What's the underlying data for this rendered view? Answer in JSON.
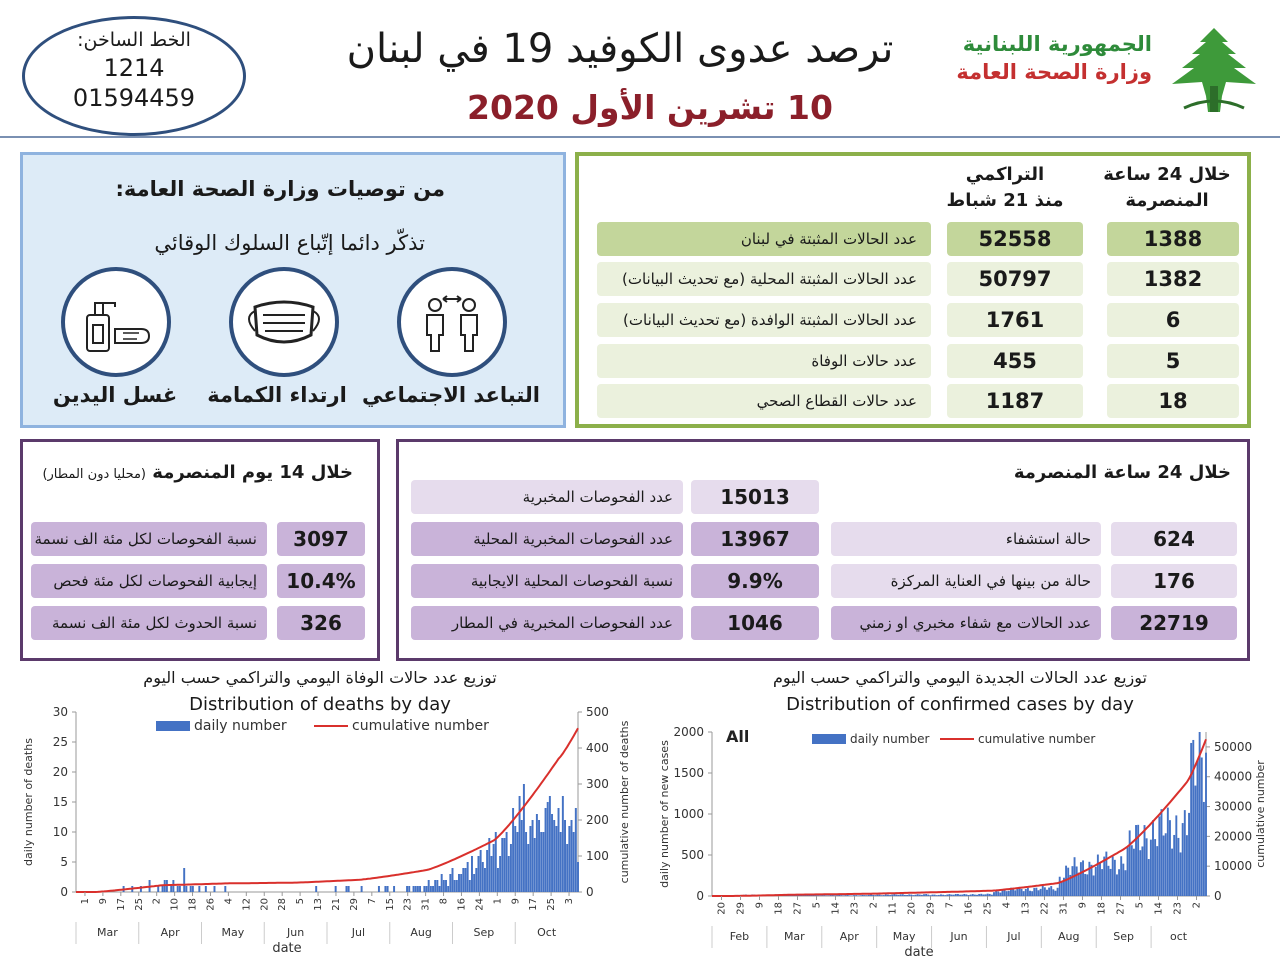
{
  "header": {
    "hotline_label": "الخط الساخن:",
    "hotline_short": "1214",
    "hotline_long": "01594459",
    "title": "ترصد عدوى الكوفيد 19 في لبنان",
    "date": "10 تشرين الأول 2020",
    "ministry_line1": "الجمهورية اللبنانية",
    "ministry_line2": "وزارة الصحة العامة"
  },
  "recommendations": {
    "title": "من توصيات وزارة الصحة العامة:",
    "subtitle": "تذكّر دائما إتّباع السلوك الوقائي",
    "items": [
      {
        "label": "التباعد الاجتماعي",
        "icon": "social-distancing-icon"
      },
      {
        "label": "ارتداء الكمامة",
        "icon": "face-mask-icon"
      },
      {
        "label": "غسل اليدين",
        "icon": "hand-washing-icon"
      }
    ]
  },
  "stats": {
    "col_24h_line1": "خلال 24 ساعة",
    "col_24h_line2": "المنصرمة",
    "col_cum_line1": "التراكمي",
    "col_cum_line2": "منذ 21 شباط",
    "rows": [
      {
        "label": "عدد الحالات المثبتة في لبنان",
        "daily": "1388",
        "cumulative": "52558"
      },
      {
        "label": "عدد الحالات المثبتة المحلية (مع تحديث البيانات)",
        "daily": "1382",
        "cumulative": "50797"
      },
      {
        "label": "عدد الحالات المثبتة الوافدة (مع تحديث البيانات)",
        "daily": "6",
        "cumulative": "1761"
      },
      {
        "label": "عدد حالات الوفاة",
        "daily": "5",
        "cumulative": "455"
      },
      {
        "label": "عدد حالات القطاع الصحي",
        "daily": "18",
        "cumulative": "1187"
      }
    ]
  },
  "days14": {
    "title": "خلال 14 يوم المنصرمة",
    "note": "(محليا دون المطار)",
    "rows": [
      {
        "label": "نسبة الفحوصات لكل مئة الف نسمة",
        "value": "3097"
      },
      {
        "label": "إيجابية الفحوصات لكل مئة فحص",
        "value": "10.4%"
      },
      {
        "label": "نسبة الحدوث لكل مئة الف نسمة",
        "value": "326"
      }
    ]
  },
  "h24": {
    "title": "خلال 24 ساعة المنصرمة",
    "tests": [
      {
        "label": "عدد الفحوصات المخبرية",
        "value": "15013"
      },
      {
        "label": "عدد الفحوصات المخبرية  المحلية",
        "value": "13967"
      },
      {
        "label": "نسبة الفحوصات المحلية الايجابية",
        "value": "9.9%"
      },
      {
        "label": "عدد الفحوصات المخبرية في المطار",
        "value": "1046"
      }
    ],
    "hospital": [
      {
        "label": "حالة استشفاء",
        "value": "624"
      },
      {
        "label": "حالة من بينها في العناية المركزة",
        "value": "176"
      },
      {
        "label": "عدد الحالات مع شفاء مخبري او زمني",
        "value": "22719"
      }
    ]
  },
  "colors": {
    "bar": "#4472c4",
    "line": "#d9302c",
    "green_dark": "#c3d69b",
    "green_light": "#ebf1dd",
    "purple_dark": "#c9b3d9",
    "purple_light": "#e6dced",
    "blue_box": "#ddebf7"
  },
  "chart_data": [
    {
      "type": "bar",
      "title_ar": "توزيع عدد حالات  الوفاة اليومي والتراكمي حسب اليوم",
      "title": "Distribution of deaths by day",
      "xlabel": "date",
      "ylabel": "daily number of deaths",
      "y2label": "cumulative number of deaths",
      "ylim": [
        0,
        30
      ],
      "y2lim": [
        0,
        500
      ],
      "yticks": [
        0,
        5,
        10,
        15,
        20,
        25,
        30
      ],
      "y2ticks": [
        0,
        100,
        200,
        300,
        400,
        500
      ],
      "xtick_labels": [
        "1",
        "9",
        "17",
        "25",
        "2",
        "10",
        "18",
        "26",
        "4",
        "12",
        "20",
        "28",
        "5",
        "13",
        "21",
        "29",
        "7",
        "15",
        "23",
        "31",
        "8",
        "16",
        "24",
        "1",
        "9",
        "17",
        "25",
        "3"
      ],
      "months": [
        "Mar",
        "Apr",
        "May",
        "Jun",
        "Jul",
        "Aug",
        "Sep",
        "Oct"
      ],
      "series": [
        {
          "name": "daily number",
          "kind": "bar",
          "x_start": "2020-02-21",
          "values": [
            0,
            0,
            0,
            0,
            0,
            0,
            0,
            0,
            0,
            0,
            0,
            0,
            0,
            0,
            0,
            0,
            0,
            0,
            0,
            0,
            1,
            0,
            0,
            0,
            1,
            0,
            0,
            0,
            1,
            0,
            0,
            0,
            2,
            0,
            0,
            1,
            0,
            1,
            2,
            2,
            0,
            1,
            2,
            0,
            1,
            1,
            0,
            4,
            1,
            0,
            1,
            0,
            0,
            1,
            0,
            0,
            1,
            0,
            0,
            0,
            1,
            0,
            0,
            0,
            0,
            1,
            0,
            0,
            0,
            0,
            0,
            0,
            0,
            0,
            0,
            0,
            0,
            0,
            0,
            0,
            0,
            0,
            0,
            0,
            0,
            0,
            0,
            0,
            0,
            0,
            0,
            0,
            0,
            0,
            0,
            0,
            0,
            0,
            0,
            0,
            0,
            0,
            0,
            0,
            1,
            0,
            0,
            0,
            0,
            0,
            0,
            0,
            0,
            1,
            0,
            0,
            0,
            0,
            1,
            0,
            0,
            0,
            0,
            0,
            1,
            0,
            0,
            0,
            0,
            0,
            0,
            0,
            1,
            0,
            0,
            1,
            0,
            0,
            1,
            0,
            0,
            0,
            0,
            0,
            1,
            1,
            0,
            1,
            1,
            1,
            1,
            0,
            1,
            2,
            1,
            1,
            2,
            2,
            1,
            3,
            2,
            2,
            1,
            3,
            4,
            2,
            2,
            3,
            3,
            4,
            5,
            2,
            6,
            3,
            4,
            6,
            7,
            5,
            4,
            7,
            9,
            6,
            8,
            10,
            4,
            6,
            9,
            10,
            6,
            8,
            14,
            11,
            10,
            16,
            12,
            18,
            10,
            8,
            11,
            12,
            9,
            13,
            12,
            10,
            14,
            15,
            16,
            13,
            12,
            11,
            14,
            10,
            16,
            12,
            8,
            11,
            12,
            10,
            14,
            5
          ]
        },
        {
          "name": "cumulative number",
          "kind": "line",
          "axis": "y2",
          "values_at_month_starts": {
            "2020-03-01": 0,
            "2020-04-01": 19,
            "2020-05-01": 24,
            "2020-06-01": 26,
            "2020-07-01": 34,
            "2020-08-01": 61,
            "2020-09-01": 143,
            "2020-10-01": 370,
            "2020-10-10": 455
          }
        }
      ]
    },
    {
      "type": "bar",
      "title_ar": "توزيع عدد الحالات الجديدة اليومي والتراكمي حسب اليوم",
      "title": "Distribution of confirmed cases by day",
      "label": "All",
      "xlabel": "date",
      "ylabel": "daily number of new cases",
      "y2label": "cumulative number",
      "ylim": [
        0,
        2000
      ],
      "y2lim": [
        0,
        55000
      ],
      "yticks": [
        0,
        500,
        1000,
        1500,
        2000
      ],
      "y2ticks": [
        0,
        10000,
        20000,
        30000,
        40000,
        50000
      ],
      "xtick_labels": [
        "20",
        "29",
        "9",
        "18",
        "27",
        "5",
        "14",
        "23",
        "2",
        "11",
        "20",
        "29",
        "7",
        "16",
        "25",
        "4",
        "13",
        "22",
        "31",
        "9",
        "18",
        "27",
        "5",
        "14",
        "23",
        "2"
      ],
      "months": [
        "Feb",
        "Mar",
        "Apr",
        "May",
        "Jun",
        "Jul",
        "Aug",
        "Sep",
        "oct"
      ],
      "series": [
        {
          "name": "daily number",
          "kind": "bar",
          "x_start": "2020-02-20",
          "values_monthly_peak": {
            "Mar": 40,
            "Apr": 50,
            "May": 40,
            "Jun": 60,
            "Jul": 170,
            "Aug": 700,
            "Sep": 1500,
            "Oct": 1400
          }
        },
        {
          "name": "cumulative number",
          "kind": "line",
          "axis": "y2",
          "values_at_month_starts": {
            "2020-03-01": 10,
            "2020-04-01": 470,
            "2020-05-01": 730,
            "2020-06-01": 1220,
            "2020-07-01": 1780,
            "2020-08-01": 4330,
            "2020-09-01": 15610,
            "2020-10-01": 38200,
            "2020-10-10": 52558
          }
        }
      ]
    }
  ]
}
